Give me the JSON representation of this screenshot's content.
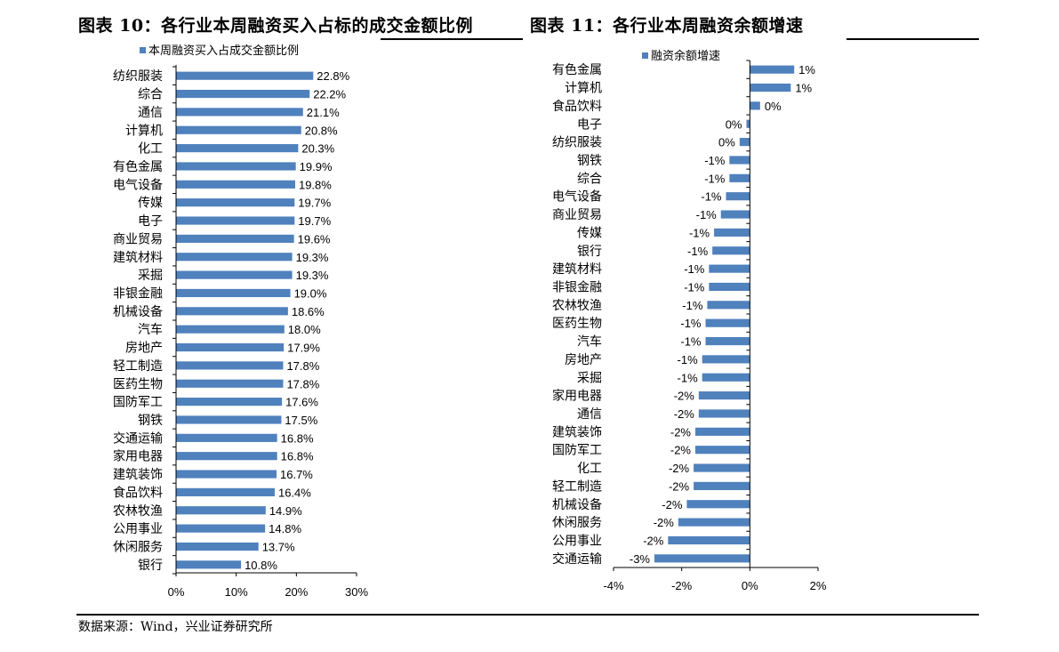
{
  "figures": {
    "left_title": "图表 10：各行业本周融资买入占标的成交金额比例",
    "right_title": "图表 11：各行业本周融资余额增速"
  },
  "source_note": "数据来源：Wind，兴业证券研究所",
  "colors": {
    "bar": "#4f81bd",
    "axis": "#000000",
    "rule": "#000000"
  },
  "chart_data": [
    {
      "type": "bar",
      "orientation": "horizontal",
      "title": "",
      "legend": {
        "position": "top-left",
        "entries": [
          "本周融资买入占成交金额比例"
        ]
      },
      "series": [
        {
          "name": "本周融资买入占成交金额比例",
          "values": [
            22.8,
            22.2,
            21.1,
            20.8,
            20.3,
            19.9,
            19.8,
            19.7,
            19.7,
            19.6,
            19.3,
            19.3,
            19.0,
            18.6,
            18.0,
            17.9,
            17.8,
            17.8,
            17.6,
            17.5,
            16.8,
            16.8,
            16.7,
            16.4,
            14.9,
            14.8,
            13.7,
            10.8
          ]
        }
      ],
      "categories": [
        "纺织服装",
        "综合",
        "通信",
        "计算机",
        "化工",
        "有色金属",
        "电气设备",
        "传媒",
        "电子",
        "商业贸易",
        "建筑材料",
        "采掘",
        "非银金融",
        "机械设备",
        "汽车",
        "房地产",
        "轻工制造",
        "医药生物",
        "国防军工",
        "钢铁",
        "交通运输",
        "家用电器",
        "建筑装饰",
        "食品饮料",
        "农林牧渔",
        "公用事业",
        "休闲服务",
        "银行"
      ],
      "data_labels": [
        "22.8%",
        "22.2%",
        "21.1%",
        "20.8%",
        "20.3%",
        "19.9%",
        "19.8%",
        "19.7%",
        "19.7%",
        "19.6%",
        "19.3%",
        "19.3%",
        "19.0%",
        "18.6%",
        "18.0%",
        "17.9%",
        "17.8%",
        "17.8%",
        "17.6%",
        "17.5%",
        "16.8%",
        "16.8%",
        "16.7%",
        "16.4%",
        "14.9%",
        "14.8%",
        "13.7%",
        "10.8%"
      ],
      "x_ticks": [
        0,
        10,
        20,
        30
      ],
      "x_tick_labels": [
        "0%",
        "10%",
        "20%",
        "30%"
      ],
      "xlim": [
        0,
        30
      ],
      "grid": false
    },
    {
      "type": "bar",
      "orientation": "horizontal",
      "title": "",
      "legend": {
        "position": "top-left",
        "entries": [
          "融资余额增速"
        ]
      },
      "series": [
        {
          "name": "融资余额增速",
          "values": [
            1.3,
            1.2,
            0.3,
            -0.1,
            -0.3,
            -0.6,
            -0.6,
            -0.7,
            -0.85,
            -1.05,
            -1.1,
            -1.2,
            -1.2,
            -1.25,
            -1.3,
            -1.3,
            -1.4,
            -1.4,
            -1.5,
            -1.5,
            -1.6,
            -1.6,
            -1.65,
            -1.65,
            -1.85,
            -2.1,
            -2.4,
            -2.8
          ]
        }
      ],
      "categories": [
        "有色金属",
        "计算机",
        "食品饮料",
        "电子",
        "纺织服装",
        "钢铁",
        "综合",
        "电气设备",
        "商业贸易",
        "传媒",
        "银行",
        "建筑材料",
        "非银金融",
        "农林牧渔",
        "医药生物",
        "汽车",
        "房地产",
        "采掘",
        "家用电器",
        "通信",
        "建筑装饰",
        "国防军工",
        "化工",
        "轻工制造",
        "机械设备",
        "休闲服务",
        "公用事业",
        "交通运输"
      ],
      "data_labels": [
        "1%",
        "1%",
        "0%",
        "0%",
        "0%",
        "-1%",
        "-1%",
        "-1%",
        "-1%",
        "-1%",
        "-1%",
        "-1%",
        "-1%",
        "-1%",
        "-1%",
        "-1%",
        "-1%",
        "-1%",
        "-2%",
        "-2%",
        "-2%",
        "-2%",
        "-2%",
        "-2%",
        "-2%",
        "-2%",
        "-2%",
        "-3%"
      ],
      "x_ticks": [
        -4,
        -2,
        0,
        2
      ],
      "x_tick_labels": [
        "-4%",
        "-2%",
        "0%",
        "2%"
      ],
      "xlim": [
        -4,
        2
      ],
      "grid": false
    }
  ]
}
